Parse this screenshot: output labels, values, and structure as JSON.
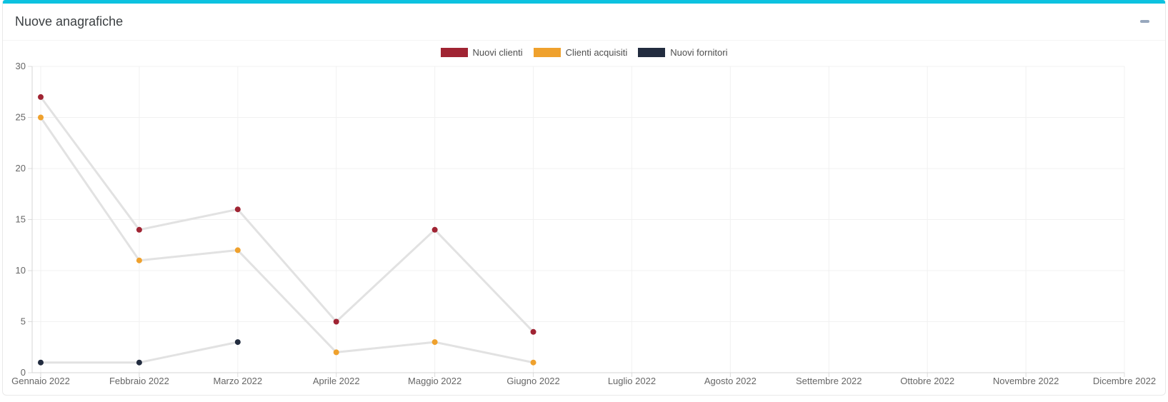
{
  "card": {
    "title": "Nuove anagrafiche",
    "accent_color": "#0cc2e0",
    "collapse_icon": "minus"
  },
  "chart_data": {
    "type": "line",
    "title": "Nuove anagrafiche",
    "categories": [
      "Gennaio 2022",
      "Febbraio 2022",
      "Marzo 2022",
      "Aprile 2022",
      "Maggio 2022",
      "Giugno 2022",
      "Luglio 2022",
      "Agosto 2022",
      "Settembre 2022",
      "Ottobre 2022",
      "Novembre 2022",
      "Dicembre 2022"
    ],
    "series": [
      {
        "name": "Nuovi clienti",
        "color": "#a02433",
        "values": [
          27,
          14,
          16,
          5,
          14,
          4,
          null,
          null,
          null,
          null,
          null,
          null
        ]
      },
      {
        "name": "Clienti acquisiti",
        "color": "#efa12d",
        "values": [
          25,
          11,
          12,
          2,
          3,
          1,
          null,
          null,
          null,
          null,
          null,
          null
        ]
      },
      {
        "name": "Nuovi fornitori",
        "color": "#222c3f",
        "values": [
          1,
          1,
          3,
          null,
          null,
          null,
          null,
          null,
          null,
          null,
          null,
          null
        ]
      }
    ],
    "ylim": [
      0,
      30
    ],
    "yticks": [
      0,
      5,
      10,
      15,
      20,
      25,
      30
    ],
    "legend_position": "top",
    "grid": true,
    "styles": {
      "line_color": "#e2e2e2",
      "grid_color": "#f1f1f1",
      "axis_color": "#d5d5d5",
      "tick_color": "#dcdcdc",
      "label_color": "#666666",
      "legend_text_color": "#4e4e4e"
    }
  }
}
